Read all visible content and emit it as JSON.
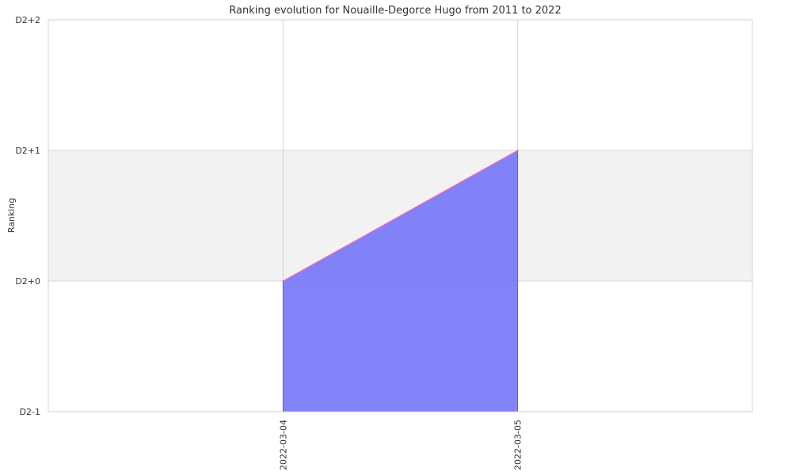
{
  "chart_data": {
    "type": "area",
    "title": "Ranking evolution for Nouaille-Degorce Hugo from 2011 to 2022",
    "xlabel": "",
    "ylabel": "Ranking",
    "x": [
      "2022-03-04",
      "2022-03-05"
    ],
    "y_tick_labels": [
      "D2-1",
      "D2+0",
      "D2+1",
      "D2+2"
    ],
    "ylim": [
      -1,
      2
    ],
    "series": [
      {
        "values": [
          0,
          1
        ]
      }
    ],
    "bands": [
      {
        "from": 0,
        "to": 1
      }
    ],
    "grid": true,
    "colors": {
      "fill": "#7777f9",
      "line": "#ff69b4",
      "band": "#f2f2f2",
      "grid": "#cccccc"
    }
  }
}
